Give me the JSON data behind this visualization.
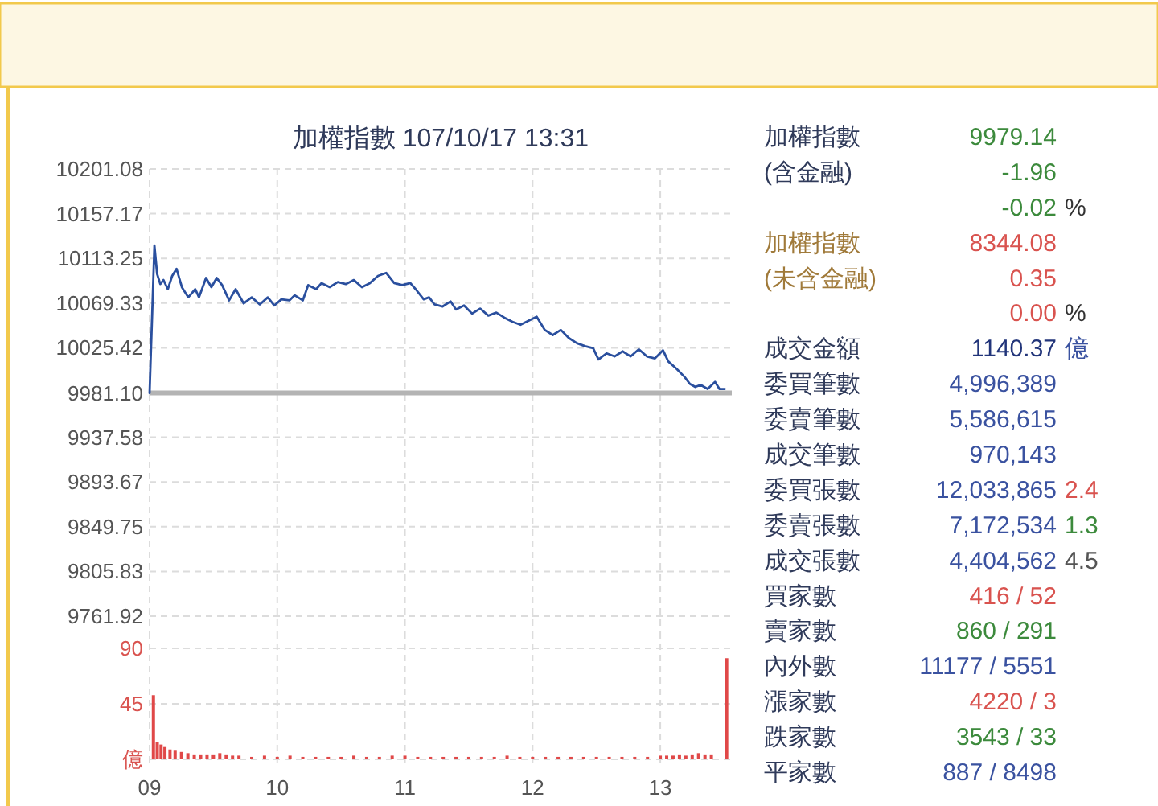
{
  "chart_data": [
    {
      "type": "line",
      "title": "加權指數 107/10/17 13:31",
      "x": [
        9.0,
        9.038,
        9.059,
        9.084,
        9.109,
        9.143,
        9.177,
        9.211,
        9.253,
        9.303,
        9.358,
        9.387,
        9.442,
        9.484,
        9.526,
        9.568,
        9.623,
        9.674,
        9.737,
        9.8,
        9.863,
        9.926,
        9.977,
        10.032,
        10.095,
        10.137,
        10.2,
        10.242,
        10.305,
        10.347,
        10.411,
        10.474,
        10.537,
        10.6,
        10.663,
        10.726,
        10.789,
        10.853,
        10.916,
        10.979,
        11.042,
        11.084,
        11.147,
        11.189,
        11.232,
        11.295,
        11.358,
        11.4,
        11.463,
        11.526,
        11.589,
        11.653,
        11.716,
        11.779,
        11.842,
        11.905,
        11.968,
        12.032,
        12.095,
        12.158,
        12.221,
        12.284,
        12.347,
        12.411,
        12.474,
        12.516,
        12.579,
        12.642,
        12.705,
        12.768,
        12.832,
        12.895,
        12.958,
        13.021,
        13.063,
        13.126,
        13.189,
        13.232,
        13.274,
        13.316,
        13.371,
        13.429,
        13.463,
        13.505
      ],
      "series": [
        {
          "color": "#2a4f9e",
          "values": [
            9981,
            10126,
            10098,
            10088,
            10092,
            10083,
            10096,
            10103,
            10085,
            10075,
            10083,
            10075,
            10094,
            10085,
            10094,
            10087,
            10072,
            10083,
            10069,
            10075,
            10068,
            10075,
            10067,
            10073,
            10072,
            10077,
            10072,
            10087,
            10083,
            10089,
            10085,
            10090,
            10088,
            10092,
            10085,
            10089,
            10096,
            10099,
            10089,
            10087,
            10089,
            10083,
            10073,
            10075,
            10068,
            10066,
            10071,
            10063,
            10067,
            10059,
            10064,
            10057,
            10060,
            10055,
            10051,
            10048,
            10052,
            10056,
            10043,
            10038,
            10043,
            10035,
            10030,
            10027,
            10025,
            10014,
            10020,
            10017,
            10022,
            10017,
            10024,
            10017,
            10015,
            10023,
            10012,
            10005,
            9997,
            9990,
            9987,
            9989,
            9985,
            9992,
            9985,
            9985
          ]
        }
      ],
      "xlim": [
        9,
        13.56
      ],
      "xticks": [
        9,
        10,
        11,
        12,
        13
      ],
      "ylim": [
        9761.92,
        10201.08
      ],
      "yticks": [
        9761.92,
        9805.83,
        9849.75,
        9893.67,
        9937.58,
        {
          "value": 9981.1,
          "label": "9981.10"
        },
        10025.42,
        10069.33,
        10113.25,
        10157.17,
        10201.08
      ],
      "ref_lines": [
        {
          "axis": "y",
          "value": 9981.1,
          "color": "#b4b4b4"
        }
      ],
      "grid": true,
      "tick_labels": "y"
    },
    {
      "type": "bar",
      "x": [
        9.03,
        9.06,
        9.09,
        9.12,
        9.16,
        9.2,
        9.25,
        9.3,
        9.35,
        9.4,
        9.45,
        9.5,
        9.55,
        9.6,
        9.65,
        9.7,
        9.8,
        9.9,
        10.0,
        10.1,
        10.2,
        10.3,
        10.4,
        10.5,
        10.6,
        10.7,
        10.8,
        10.9,
        11.0,
        11.1,
        11.2,
        11.3,
        11.4,
        11.5,
        11.6,
        11.7,
        11.8,
        11.9,
        12.0,
        12.1,
        12.2,
        12.3,
        12.4,
        12.5,
        12.6,
        12.7,
        12.8,
        12.9,
        13.0,
        13.05,
        13.1,
        13.15,
        13.2,
        13.25,
        13.3,
        13.35,
        13.4,
        13.52
      ],
      "values": [
        52,
        14,
        12,
        10,
        8,
        7,
        6,
        5,
        4,
        4,
        4,
        4,
        5,
        4,
        3,
        3,
        2,
        3,
        2,
        3,
        2,
        2,
        2,
        2,
        3,
        2,
        2,
        3,
        3,
        2,
        2,
        2,
        2,
        2,
        2,
        2,
        3,
        2,
        2,
        2,
        2,
        2,
        2,
        2,
        2,
        2,
        2,
        2,
        3,
        3,
        3,
        4,
        3,
        4,
        5,
        4,
        4,
        82
      ],
      "color": "#e04848",
      "xlim": [
        9,
        13.56
      ],
      "xticks": [
        {
          "value": 9,
          "label": "09"
        },
        10,
        11,
        12,
        13
      ],
      "ylim": [
        0,
        90
      ],
      "yticks": [
        {
          "value": 0,
          "label": "億"
        },
        45,
        90
      ],
      "grid": true
    },
    {
      "type": "other",
      "y_categories": [
        "加權指數",
        "(含金融)",
        null,
        "加權指數",
        "(未含金融)",
        null,
        "成交金額",
        "委買筆數",
        "委賣筆數",
        "成交筆數",
        "委買張數",
        "委賣張數",
        "成交張數",
        "買家數",
        "賣家數",
        "內外數",
        "漲家數",
        "跌家數",
        "平家數"
      ],
      "cell_labels": [
        [
          "9979.14",
          null
        ],
        [
          "-1.96",
          null
        ],
        [
          "-0.02",
          "%"
        ],
        [
          "8344.08",
          null
        ],
        [
          "0.35",
          null
        ],
        [
          "0.00",
          "%"
        ],
        [
          "1140.37",
          "億"
        ],
        [
          "4,996,389",
          null
        ],
        [
          "5,586,615",
          null
        ],
        [
          "970,143",
          null
        ],
        [
          "12,033,865",
          "2.4"
        ],
        [
          "7,172,534",
          "1.3"
        ],
        [
          "4,404,562",
          "4.5"
        ],
        [
          "416 / 52",
          null
        ],
        [
          "860 / 291",
          null
        ],
        [
          "11177 / 5551",
          null
        ],
        [
          "4220 / 3",
          null
        ],
        [
          "3543 / 33",
          null
        ],
        [
          "887 / 8498",
          null
        ]
      ],
      "colors": [
        [
          "#2f3a5a",
          "#3c8a3c",
          null
        ],
        [
          "#2f3a5a",
          "#3c8a3c",
          null
        ],
        [
          null,
          "#3c8a3c",
          "#333333"
        ],
        [
          "#a07a3a",
          "#d9534f",
          null
        ],
        [
          "#a07a3a",
          "#d9534f",
          null
        ],
        [
          null,
          "#d9534f",
          "#333333"
        ],
        [
          "#2f3a5a",
          "#22357a",
          "#3a52a0"
        ],
        [
          "#2f3a5a",
          "#3a52a0",
          null
        ],
        [
          "#2f3a5a",
          "#3a52a0",
          null
        ],
        [
          "#2f3a5a",
          "#3a52a0",
          null
        ],
        [
          "#2f3a5a",
          "#3a52a0",
          "#d9534f"
        ],
        [
          "#2f3a5a",
          "#3a52a0",
          "#3c8a3c"
        ],
        [
          "#2f3a5a",
          "#3a52a0",
          "#555555"
        ],
        [
          "#2f3a5a",
          "#d9534f",
          null
        ],
        [
          "#2f3a5a",
          "#3c8a3c",
          null
        ],
        [
          "#2f3a5a",
          "#3a52a0",
          null
        ],
        [
          "#2f3a5a",
          "#d9534f",
          null
        ],
        [
          "#2f3a5a",
          "#3c8a3c",
          null
        ],
        [
          "#2f3a5a",
          "#3a52a0",
          null
        ]
      ]
    }
  ]
}
